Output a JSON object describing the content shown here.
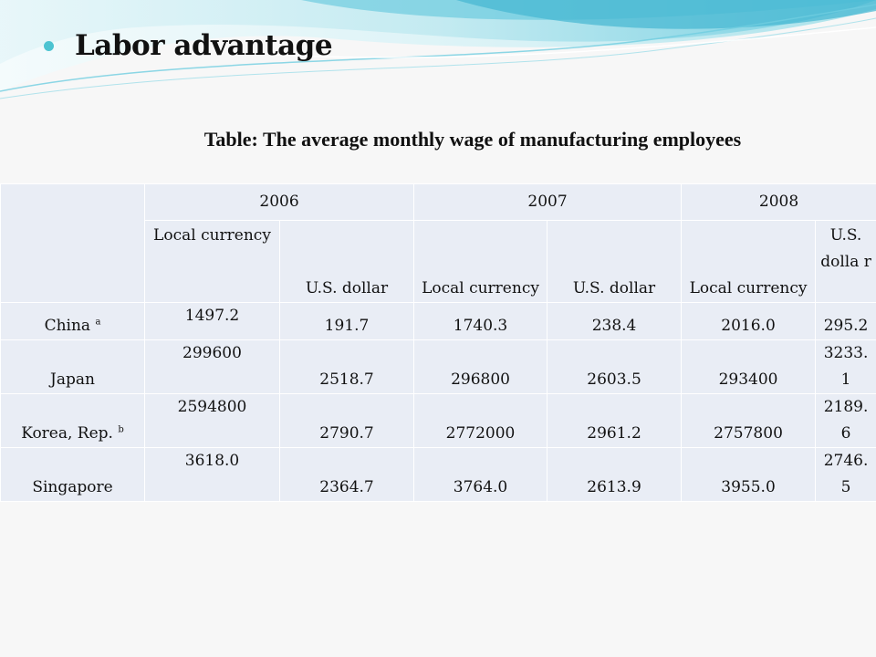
{
  "slide": {
    "heading": "Labor advantage",
    "table_caption": "Table: The average monthly wage of manufacturing employees"
  },
  "table": {
    "years": [
      "2006",
      "2007",
      "2008"
    ],
    "local_currency": "Local currency",
    "us_dollar": "U.S. dollar",
    "last_us_dollar": "U.S. dolla r",
    "rows": [
      {
        "country": "China",
        "note": "a",
        "values": [
          "1497.2",
          "191.7",
          "1740.3",
          "238.4",
          "2016.0",
          "295.2"
        ]
      },
      {
        "country": "Japan",
        "note": "",
        "values": [
          "299600",
          "2518.7",
          "296800",
          "2603.5",
          "293400",
          "3233. 1"
        ]
      },
      {
        "country": "Korea, Rep.",
        "note": "b",
        "values": [
          "2594800",
          "2790.7",
          "2772000",
          "2961.2",
          "2757800",
          "2189. 6"
        ]
      },
      {
        "country": "Singapore",
        "note": "",
        "values": [
          "3618.0",
          "2364.7",
          "3764.0",
          "2613.9",
          "3955.0",
          "2746. 5"
        ]
      }
    ]
  },
  "colors": {
    "accent": "#4cc3d1",
    "table_fill": "#e9edf5",
    "wave_light": "#bfe9f0",
    "wave_dark": "#5fc6dc"
  }
}
